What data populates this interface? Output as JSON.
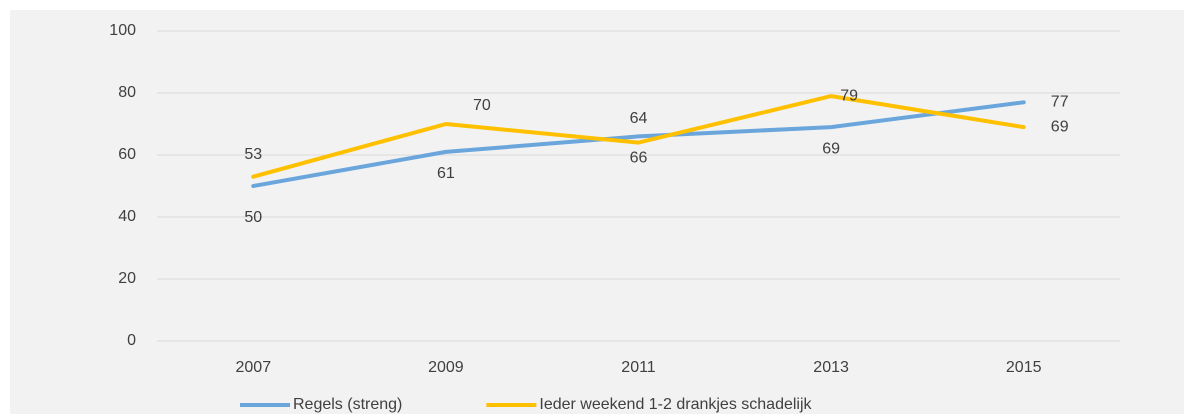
{
  "chart_data": {
    "type": "line",
    "categories": [
      "2007",
      "2009",
      "2011",
      "2013",
      "2015"
    ],
    "series": [
      {
        "name": "Regels (streng)",
        "color": "#6aa6dc",
        "values": [
          50,
          61,
          66,
          69,
          77
        ]
      },
      {
        "name": "Ieder weekend 1-2 drankjes schadelijk",
        "color": "#ffc000",
        "values": [
          53,
          70,
          64,
          79,
          69
        ]
      }
    ],
    "ylim": [
      0,
      100
    ],
    "yticks": [
      0,
      20,
      40,
      60,
      80,
      100
    ],
    "grid": true,
    "legend": "bottom"
  }
}
